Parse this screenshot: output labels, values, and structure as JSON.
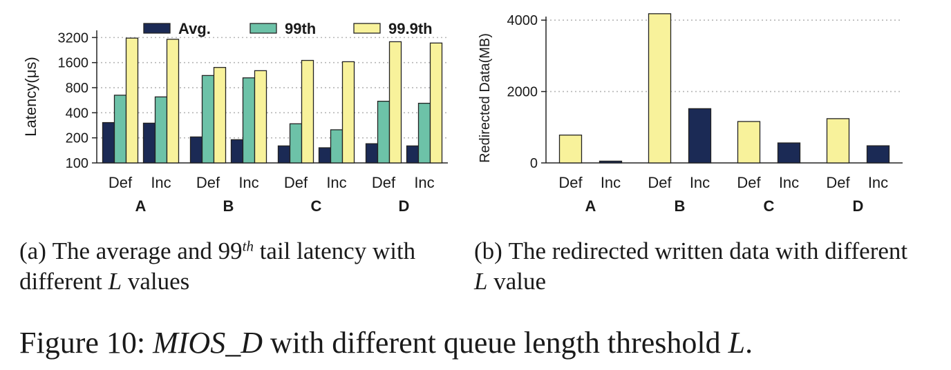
{
  "chart_data": [
    {
      "type": "bar",
      "panel": "a",
      "ylabel": "Latency(μs)",
      "yscale": "log2",
      "ylim": [
        100,
        3900
      ],
      "yticks": [
        100,
        200,
        400,
        800,
        1600,
        3200
      ],
      "grid": true,
      "legend_position": "top",
      "groups": [
        "A",
        "B",
        "C",
        "D"
      ],
      "subcategories": [
        "Def",
        "Inc"
      ],
      "series": [
        {
          "name": "Avg.",
          "color": "#1b2a55",
          "values": [
            305,
            300,
            205,
            190,
            160,
            152,
            170,
            160
          ]
        },
        {
          "name": "99th",
          "color": "#6dc2a8",
          "values": [
            650,
            620,
            1120,
            1050,
            295,
            250,
            550,
            520
          ]
        },
        {
          "name": "99.9th",
          "color": "#f8f29b",
          "values": [
            3150,
            3050,
            1400,
            1280,
            1700,
            1640,
            2850,
            2750
          ]
        }
      ]
    },
    {
      "type": "bar",
      "panel": "b",
      "ylabel": "Redirected Data(MB)",
      "ylim": [
        0,
        4100
      ],
      "yticks": [
        0,
        2000,
        4000
      ],
      "grid": true,
      "groups": [
        "A",
        "B",
        "C",
        "D"
      ],
      "categories": [
        "Def",
        "Inc",
        "Def",
        "Inc",
        "Def",
        "Inc",
        "Def",
        "Inc"
      ],
      "values": [
        780,
        50,
        4180,
        1520,
        1160,
        560,
        1240,
        480
      ],
      "colors": [
        "#f8f29b",
        "#1b2a55",
        "#f8f29b",
        "#1b2a55",
        "#f8f29b",
        "#1b2a55",
        "#f8f29b",
        "#1b2a55"
      ]
    }
  ],
  "captions": {
    "a_prefix": "(a)",
    "a_text_1": "The average and 99",
    "a_sup": "th",
    "a_text_2": " tail latency with different ",
    "a_var": "L",
    "a_text_3": " values",
    "b_prefix": "(b)",
    "b_text_1": "The redirected written data with different ",
    "b_var": "L",
    "b_text_2": " value",
    "figure_label": "Figure 10: ",
    "figure_name": "MIOS_D",
    "figure_text": " with different queue length threshold ",
    "figure_var": "L",
    "figure_end": "."
  }
}
